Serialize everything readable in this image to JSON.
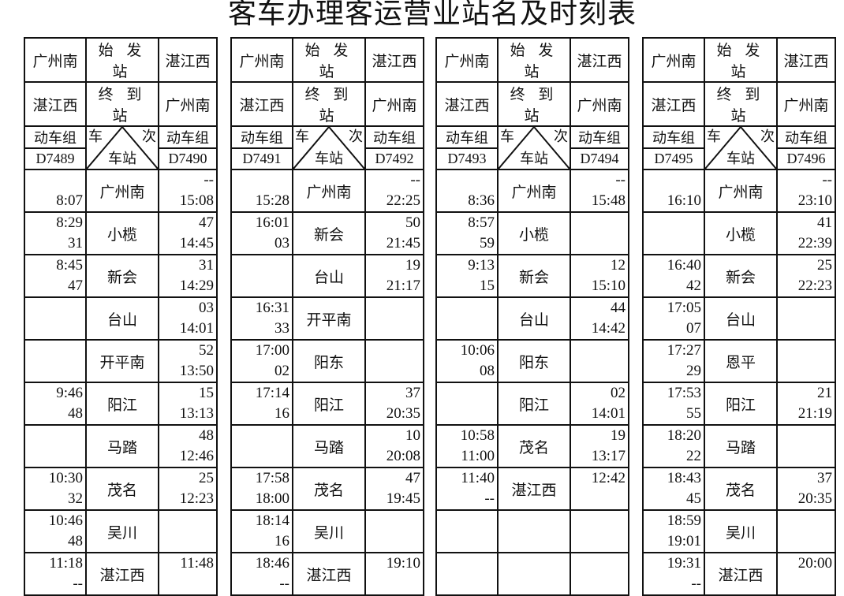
{
  "title": "客车办理客运营业站名及时刻表",
  "labels": {
    "origin": "始 发 站",
    "terminus": "终 到 站",
    "unit": "动车组",
    "train": "车",
    "number": "次",
    "station": "车站"
  },
  "tables": [
    {
      "down_origin": "广州南",
      "down_terminus": "湛江西",
      "up_origin": "湛江西",
      "up_terminus": "广州南",
      "down_train": "D7489",
      "up_train": "D7490",
      "rows": [
        [
          "广州南",
          "",
          "8:07",
          "--",
          "15:08"
        ],
        [
          "小榄",
          "8:29",
          "31",
          "47",
          "14:45"
        ],
        [
          "新会",
          "8:45",
          "47",
          "31",
          "14:29"
        ],
        [
          "台山",
          "",
          "",
          "03",
          "14:01"
        ],
        [
          "开平南",
          "",
          "",
          "52",
          "13:50"
        ],
        [
          "阳江",
          "9:46",
          "48",
          "15",
          "13:13"
        ],
        [
          "马踏",
          "",
          "",
          "48",
          "12:46"
        ],
        [
          "茂名",
          "10:30",
          "32",
          "25",
          "12:23"
        ],
        [
          "吴川",
          "10:46",
          "48",
          "",
          ""
        ],
        [
          "湛江西",
          "11:18",
          "--",
          "11:48",
          ""
        ]
      ]
    },
    {
      "down_origin": "广州南",
      "down_terminus": "湛江西",
      "up_origin": "湛江西",
      "up_terminus": "广州南",
      "down_train": "D7491",
      "up_train": "D7492",
      "rows": [
        [
          "广州南",
          "",
          "15:28",
          "--",
          "22:25"
        ],
        [
          "新会",
          "16:01",
          "03",
          "50",
          "21:45"
        ],
        [
          "台山",
          "",
          "",
          "19",
          "21:17"
        ],
        [
          "开平南",
          "16:31",
          "33",
          "",
          ""
        ],
        [
          "阳东",
          "17:00",
          "02",
          "",
          ""
        ],
        [
          "阳江",
          "17:14",
          "16",
          "37",
          "20:35"
        ],
        [
          "马踏",
          "",
          "",
          "10",
          "20:08"
        ],
        [
          "茂名",
          "17:58",
          "18:00",
          "47",
          "19:45"
        ],
        [
          "吴川",
          "18:14",
          "16",
          "",
          ""
        ],
        [
          "湛江西",
          "18:46",
          "--",
          "19:10",
          ""
        ]
      ]
    },
    {
      "down_origin": "广州南",
      "down_terminus": "湛江西",
      "up_origin": "湛江西",
      "up_terminus": "广州南",
      "down_train": "D7493",
      "up_train": "D7494",
      "rows": [
        [
          "广州南",
          "",
          "8:36",
          "--",
          "15:48"
        ],
        [
          "小榄",
          "8:57",
          "59",
          "",
          ""
        ],
        [
          "新会",
          "9:13",
          "15",
          "12",
          "15:10"
        ],
        [
          "台山",
          "",
          "",
          "44",
          "14:42"
        ],
        [
          "阳东",
          "10:06",
          "08",
          "",
          ""
        ],
        [
          "阳江",
          "",
          "",
          "02",
          "14:01"
        ],
        [
          "茂名",
          "10:58",
          "11:00",
          "19",
          "13:17"
        ],
        [
          "湛江西",
          "11:40",
          "--",
          "12:42",
          ""
        ],
        [
          "",
          "",
          "",
          "",
          ""
        ],
        [
          "",
          "",
          "",
          "",
          ""
        ]
      ]
    },
    {
      "down_origin": "广州南",
      "down_terminus": "湛江西",
      "up_origin": "湛江西",
      "up_terminus": "广州南",
      "down_train": "D7495",
      "up_train": "D7496",
      "rows": [
        [
          "广州南",
          "",
          "16:10",
          "--",
          "23:10"
        ],
        [
          "小榄",
          "",
          "",
          "41",
          "22:39"
        ],
        [
          "新会",
          "16:40",
          "42",
          "25",
          "22:23"
        ],
        [
          "台山",
          "17:05",
          "07",
          "",
          ""
        ],
        [
          "恩平",
          "17:27",
          "29",
          "",
          ""
        ],
        [
          "阳江",
          "17:53",
          "55",
          "21",
          "21:19"
        ],
        [
          "马踏",
          "18:20",
          "22",
          "",
          ""
        ],
        [
          "茂名",
          "18:43",
          "45",
          "37",
          "20:35"
        ],
        [
          "吴川",
          "18:59",
          "19:01",
          "",
          ""
        ],
        [
          "湛江西",
          "19:31",
          "--",
          "20:00",
          ""
        ]
      ]
    }
  ]
}
